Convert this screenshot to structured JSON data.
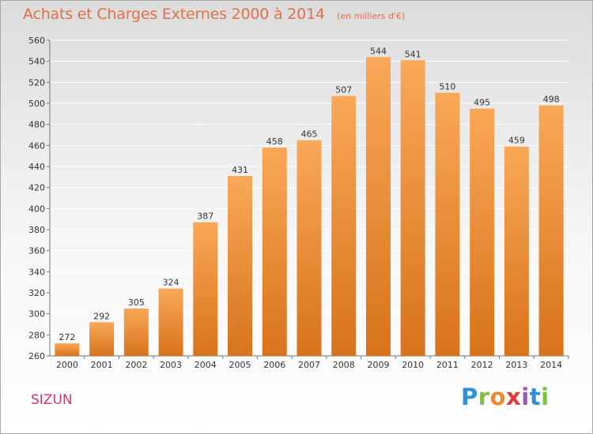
{
  "title": "Achats et Charges Externes 2000 à 2014",
  "unit": "(en milliers d'€)",
  "commune": "SIZUN",
  "brand": {
    "letters": [
      {
        "ch": "P",
        "color": "#2f8fd8"
      },
      {
        "ch": "r",
        "color": "#7cc242"
      },
      {
        "ch": "o",
        "color": "#f08a24"
      },
      {
        "ch": "x",
        "color": "#e23a3a"
      },
      {
        "ch": "i",
        "color": "#9b59b6"
      },
      {
        "ch": "t",
        "color": "#2f8fd8"
      },
      {
        "ch": "i",
        "color": "#7cc242"
      }
    ]
  },
  "colors": {
    "bar_top": "#f9a857",
    "bar_bottom": "#d8731a",
    "grid": "#ffffff",
    "text": "#333333"
  },
  "chart_data": {
    "type": "bar",
    "title": "Achats et Charges Externes 2000 à 2014",
    "subtitle": "(en milliers d'€)",
    "categories": [
      "2000",
      "2001",
      "2002",
      "2003",
      "2004",
      "2005",
      "2006",
      "2007",
      "2008",
      "2009",
      "2010",
      "2011",
      "2012",
      "2013",
      "2014"
    ],
    "values": [
      272,
      292,
      305,
      324,
      387,
      431,
      458,
      465,
      507,
      544,
      541,
      510,
      495,
      459,
      498
    ],
    "ylim": [
      260,
      560
    ],
    "yticks": [
      260,
      280,
      300,
      320,
      340,
      360,
      380,
      400,
      420,
      440,
      460,
      480,
      500,
      520,
      540,
      560
    ],
    "grid": true,
    "xlabel": "",
    "ylabel": ""
  }
}
